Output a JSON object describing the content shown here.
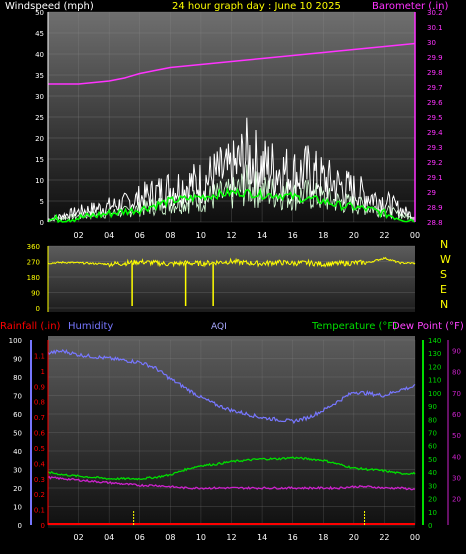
{
  "colors": {
    "wind": "#ffffff",
    "gust": "#ffffff",
    "wind_avg": "#00ff00",
    "barometer": "#ff33ff",
    "direction": "#ffff00",
    "rainfall": "#ff0000",
    "humidity": "#7777ff",
    "temperature": "#00dd00",
    "dewpoint": "#cc22cc",
    "axis_text": "#ffffff"
  },
  "chart_data": [
    {
      "id": "wind-panel",
      "type": "line",
      "title": "24 hour graph day : June 10 2025",
      "ylabel_left": "Windspeed (mph)",
      "ylabel_right": "Barometer (.in)",
      "x_ticks": [
        "02",
        "04",
        "06",
        "08",
        "10",
        "12",
        "14",
        "16",
        "18",
        "20",
        "22",
        "00"
      ],
      "y_left_ticks": [
        "0",
        "5",
        "10",
        "15",
        "20",
        "25",
        "30",
        "35",
        "40",
        "45",
        "50"
      ],
      "y_right_ticks": [
        "28.8",
        "28.9",
        "29",
        "29.1",
        "29.2",
        "29.3",
        "29.4",
        "29.5",
        "29.6",
        "29.7",
        "29.8",
        "29.9",
        "30",
        "30.1",
        "30.2"
      ],
      "ylim_left": [
        0,
        50
      ],
      "ylim_right": [
        28.8,
        30.2
      ],
      "xlim_hours": [
        0,
        24
      ],
      "series": [
        {
          "key": "barometer",
          "axis": "right",
          "x": [
            0,
            2,
            3,
            4,
            5,
            6,
            7,
            8,
            9,
            10,
            11,
            12,
            13,
            14,
            15,
            16,
            17,
            18,
            19,
            20,
            21,
            22,
            23,
            24
          ],
          "values": [
            29.72,
            29.72,
            29.73,
            29.74,
            29.76,
            29.79,
            29.81,
            29.83,
            29.84,
            29.85,
            29.86,
            29.87,
            29.88,
            29.89,
            29.9,
            29.91,
            29.92,
            29.93,
            29.94,
            29.95,
            29.96,
            29.97,
            29.98,
            29.99
          ]
        },
        {
          "key": "wind_avg",
          "axis": "left",
          "x": [
            0,
            2,
            3,
            4,
            5,
            6,
            7,
            8,
            9,
            10,
            11,
            12,
            13,
            14,
            15,
            16,
            17,
            18,
            19,
            20,
            21,
            22,
            23,
            24
          ],
          "values": [
            0.5,
            1,
            1.5,
            2,
            2.5,
            3,
            4,
            5,
            5.5,
            6,
            6.5,
            7,
            7,
            6.5,
            6.5,
            6,
            5.5,
            5,
            4,
            3.5,
            3,
            2,
            1,
            0.5
          ]
        },
        {
          "key": "gust",
          "axis": "left",
          "x": [
            0,
            2,
            3,
            4,
            5,
            6,
            7,
            8,
            9,
            10,
            11,
            12,
            13,
            14,
            15,
            16,
            17,
            18,
            19,
            20,
            21,
            22,
            23,
            24
          ],
          "values": [
            1,
            4,
            5,
            6,
            7,
            9,
            11,
            13,
            14,
            15,
            18,
            19,
            25,
            21,
            20,
            18,
            19,
            16,
            14,
            12,
            10,
            8,
            5,
            2
          ]
        }
      ]
    },
    {
      "id": "direction-panel",
      "type": "line",
      "ylabel_right": "N W S E N",
      "compass": [
        "N",
        "W",
        "S",
        "E",
        "N"
      ],
      "y_ticks": [
        "0",
        "90",
        "180",
        "270",
        "360"
      ],
      "ylim": [
        0,
        360
      ],
      "xlim_hours": [
        0,
        24
      ],
      "series": [
        {
          "key": "direction",
          "x": [
            0,
            1,
            2,
            3,
            4,
            5,
            6,
            7,
            8,
            9,
            10,
            11,
            12,
            13,
            14,
            15,
            16,
            17,
            18,
            19,
            20,
            21,
            22,
            23,
            24
          ],
          "values": [
            260,
            265,
            262,
            258,
            255,
            260,
            268,
            262,
            255,
            262,
            258,
            265,
            270,
            262,
            258,
            265,
            260,
            262,
            255,
            258,
            262,
            265,
            290,
            262,
            260
          ]
        }
      ],
      "spikes_hours": [
        5.5,
        9.0,
        10.8
      ]
    },
    {
      "id": "temp-panel",
      "type": "line",
      "label_rainfall": "Rainfall (.in)",
      "label_humidity": "Humidity",
      "label_aqi": "AQI",
      "label_temperature": "Temperature (°F)",
      "label_dewpoint": "Dew Point (°F)",
      "x_ticks": [
        "02",
        "04",
        "06",
        "08",
        "10",
        "12",
        "14",
        "16",
        "18",
        "20",
        "22",
        "00"
      ],
      "humidity_ticks": [
        "0",
        "10",
        "20",
        "30",
        "40",
        "50",
        "60",
        "70",
        "80",
        "90",
        "100"
      ],
      "rain_ticks": [
        "0",
        "0.1",
        "0.2",
        "0.3",
        "0.4",
        "0.5",
        "0.6",
        "0.7",
        "0.8",
        "0.9",
        "1",
        "1.1"
      ],
      "temp_ticks": [
        "0",
        "10",
        "20",
        "30",
        "40",
        "50",
        "60",
        "70",
        "80",
        "90",
        "100",
        "110",
        "120",
        "130",
        "140"
      ],
      "dew_ticks": [
        "20",
        "30",
        "40",
        "50",
        "60",
        "70",
        "80",
        "90"
      ],
      "ylim_humidity": [
        0,
        100
      ],
      "ylim_temp": [
        0,
        140
      ],
      "xlim_hours": [
        0,
        24
      ],
      "series": [
        {
          "key": "humidity",
          "x": [
            0,
            1,
            2,
            3,
            4,
            5,
            6,
            7,
            8,
            9,
            10,
            11,
            12,
            13,
            14,
            15,
            16,
            17,
            18,
            19,
            20,
            21,
            22,
            23,
            24
          ],
          "values": [
            93,
            94,
            92,
            91,
            90,
            89,
            88,
            85,
            79,
            74,
            69,
            65,
            62,
            60,
            58,
            57,
            56,
            58,
            62,
            67,
            72,
            71,
            70,
            73,
            75
          ]
        },
        {
          "key": "temperature",
          "x": [
            0,
            1,
            2,
            3,
            4,
            5,
            6,
            7,
            8,
            9,
            10,
            11,
            12,
            13,
            14,
            15,
            16,
            17,
            18,
            19,
            20,
            21,
            22,
            23,
            24
          ],
          "values": [
            40,
            38,
            37,
            36,
            35,
            35,
            35,
            36,
            38,
            42,
            45,
            46,
            48,
            49,
            50,
            50,
            51,
            50,
            49,
            46,
            43,
            42,
            41,
            39,
            39
          ]
        },
        {
          "key": "dewpoint",
          "x": [
            0,
            1,
            2,
            3,
            4,
            5,
            6,
            7,
            8,
            9,
            10,
            11,
            12,
            13,
            14,
            15,
            16,
            17,
            18,
            19,
            20,
            21,
            22,
            23,
            24
          ],
          "values": [
            36,
            35,
            34,
            33,
            32,
            31,
            30,
            30,
            29,
            28,
            28,
            28,
            28,
            28,
            28,
            28,
            28,
            28,
            28,
            28,
            29,
            29,
            28,
            28,
            27
          ]
        }
      ],
      "aqi_marks_hours": [
        5.6,
        20.7
      ]
    }
  ]
}
